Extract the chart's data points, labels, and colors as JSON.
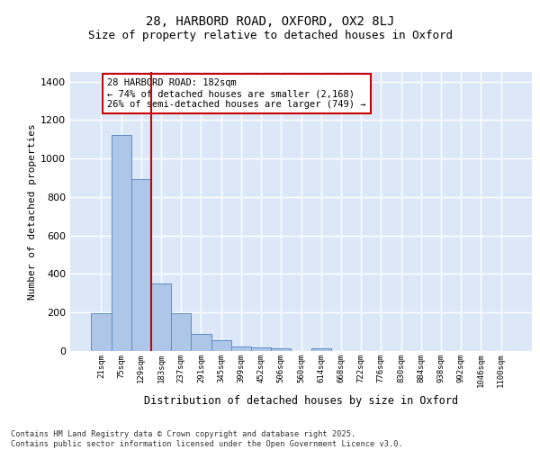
{
  "title1": "28, HARBORD ROAD, OXFORD, OX2 8LJ",
  "title2": "Size of property relative to detached houses in Oxford",
  "xlabel": "Distribution of detached houses by size in Oxford",
  "ylabel": "Number of detached properties",
  "categories": [
    "21sqm",
    "75sqm",
    "129sqm",
    "183sqm",
    "237sqm",
    "291sqm",
    "345sqm",
    "399sqm",
    "452sqm",
    "506sqm",
    "560sqm",
    "614sqm",
    "668sqm",
    "722sqm",
    "776sqm",
    "830sqm",
    "884sqm",
    "938sqm",
    "992sqm",
    "1046sqm",
    "1100sqm"
  ],
  "values": [
    197,
    1122,
    893,
    352,
    196,
    90,
    54,
    22,
    19,
    13,
    0,
    13,
    0,
    0,
    0,
    0,
    0,
    0,
    0,
    0,
    0
  ],
  "bar_color": "#aec6e8",
  "bar_edge_color": "#5b8ec4",
  "bg_color": "#dce8f8",
  "grid_color": "#ffffff",
  "vline_color": "#cc0000",
  "annotation_text": "28 HARBORD ROAD: 182sqm\n← 74% of detached houses are smaller (2,168)\n26% of semi-detached houses are larger (749) →",
  "annotation_box_color": "#ffffff",
  "annotation_box_edge": "#cc0000",
  "footnote": "Contains HM Land Registry data © Crown copyright and database right 2025.\nContains public sector information licensed under the Open Government Licence v3.0.",
  "ylim": [
    0,
    1450
  ],
  "yticks": [
    0,
    200,
    400,
    600,
    800,
    1000,
    1200,
    1400
  ]
}
